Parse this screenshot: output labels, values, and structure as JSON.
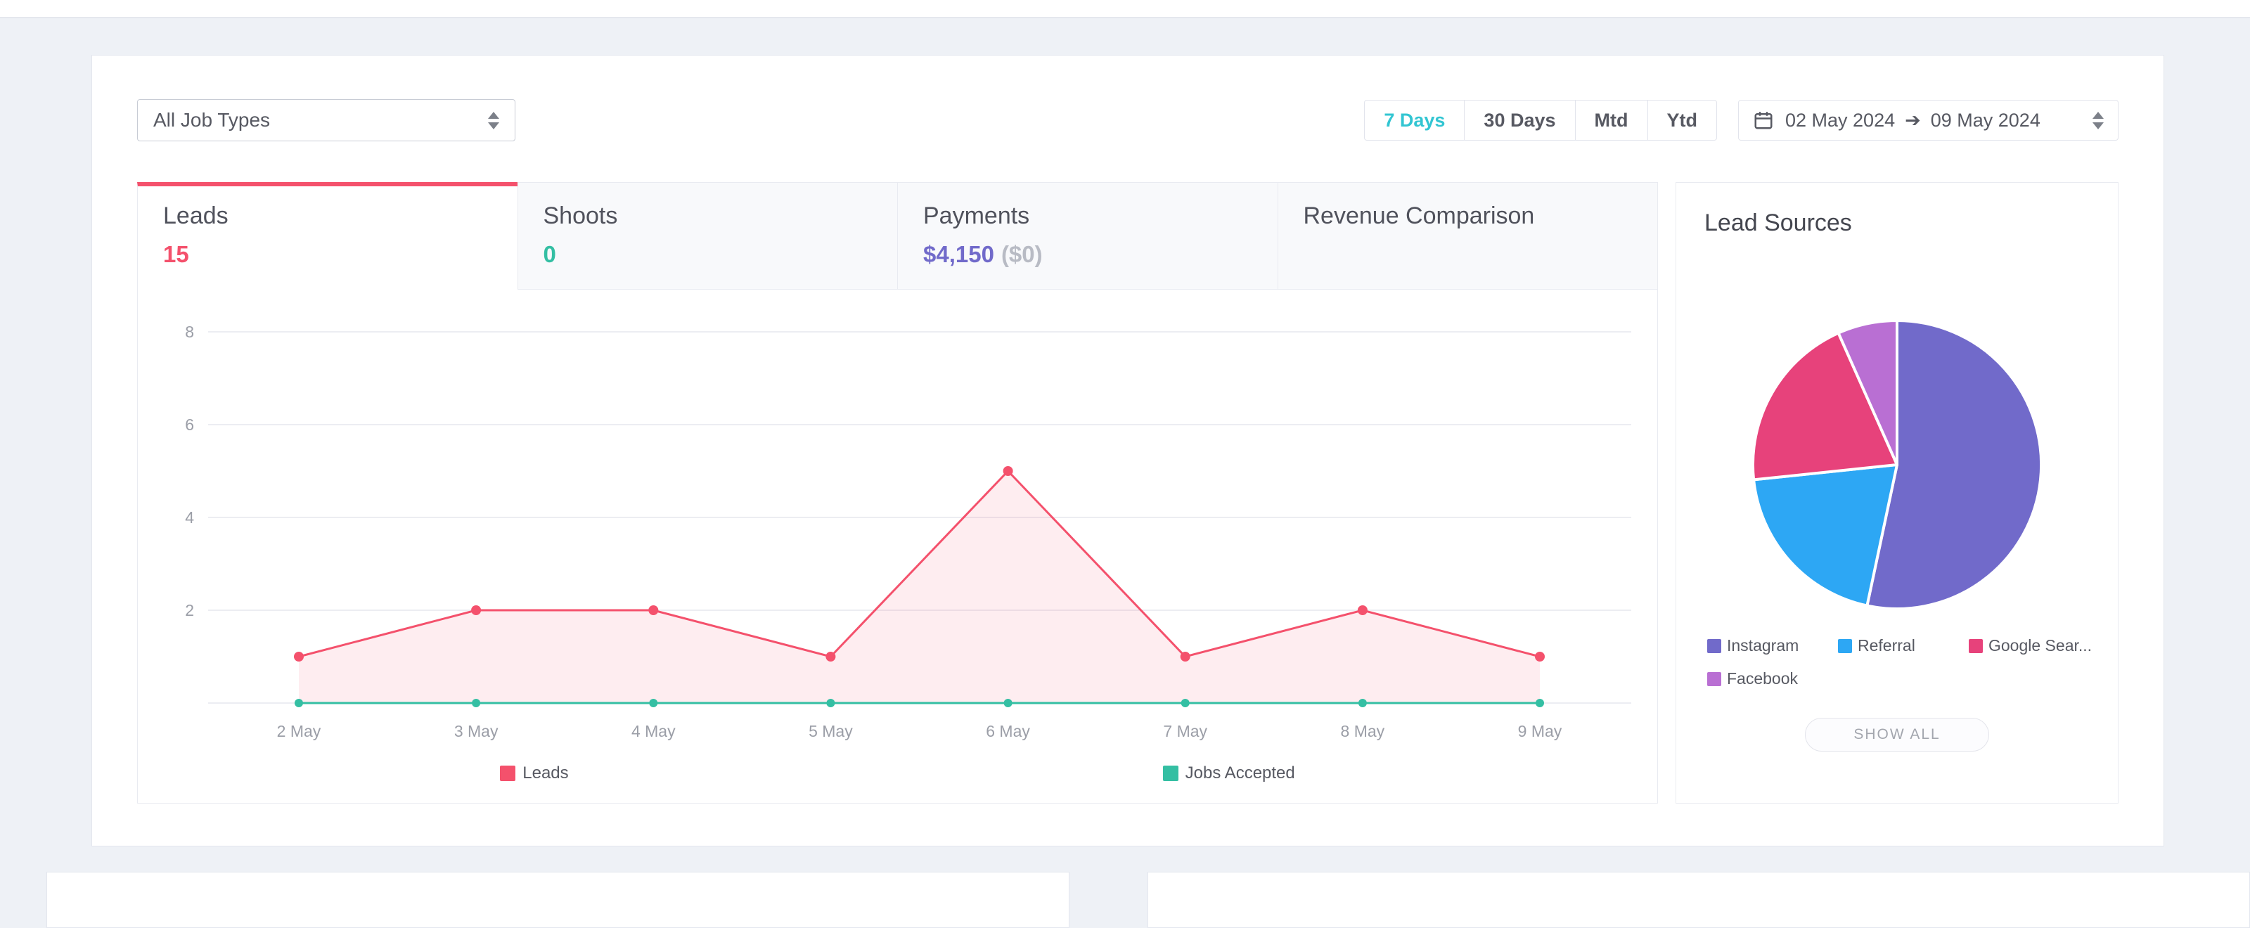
{
  "colors": {
    "accent_teal": "#32c5d2",
    "leads_pink": "#f4516c",
    "shoots_green": "#34bfa3",
    "payments_purple": "#716aca",
    "axis_gray": "#9b9ea7"
  },
  "filters": {
    "job_type": {
      "value": "All Job Types"
    },
    "range_buttons": [
      {
        "label": "7 Days",
        "active": true
      },
      {
        "label": "30 Days",
        "active": false
      },
      {
        "label": "Mtd",
        "active": false
      },
      {
        "label": "Ytd",
        "active": false
      }
    ],
    "date_range": {
      "start": "02 May 2024",
      "separator": "➔",
      "end": "09 May 2024"
    }
  },
  "tabs": [
    {
      "label": "Leads",
      "value": "15",
      "value_color": "#f4516c",
      "active": true
    },
    {
      "label": "Shoots",
      "value": "0",
      "value_color": "#34bfa3",
      "active": false
    },
    {
      "label": "Payments",
      "value": "$4,150",
      "value_suffix": "($0)",
      "value_color": "#716aca",
      "active": false
    },
    {
      "label": "Revenue Comparison",
      "value": "",
      "active": false
    }
  ],
  "lead_sources": {
    "title": "Lead Sources",
    "show_all_label": "SHOW ALL"
  },
  "chart_data": [
    {
      "type": "line",
      "title": "Leads",
      "x": [
        "2 May",
        "3 May",
        "4 May",
        "5 May",
        "6 May",
        "7 May",
        "8 May",
        "9 May"
      ],
      "series": [
        {
          "name": "Leads",
          "color": "#f4516c",
          "fill": "rgba(244,81,108,0.10)",
          "values": [
            1,
            2,
            2,
            1,
            5,
            1,
            2,
            1
          ]
        },
        {
          "name": "Jobs Accepted",
          "color": "#34bfa3",
          "values": [
            0,
            0,
            0,
            0,
            0,
            0,
            0,
            0
          ]
        }
      ],
      "ylim": [
        0,
        8
      ],
      "yticks": [
        2,
        4,
        6,
        8
      ],
      "grid": true,
      "legend_position": "bottom"
    },
    {
      "type": "pie",
      "title": "Lead Sources",
      "labels": [
        "Instagram",
        "Referral",
        "Google Sear...",
        "Facebook"
      ],
      "values": [
        8,
        3,
        3,
        1
      ],
      "colors": [
        "#716aca",
        "#2da7f4",
        "#e7427b",
        "#b96fd3"
      ],
      "legend_position": "bottom"
    }
  ]
}
